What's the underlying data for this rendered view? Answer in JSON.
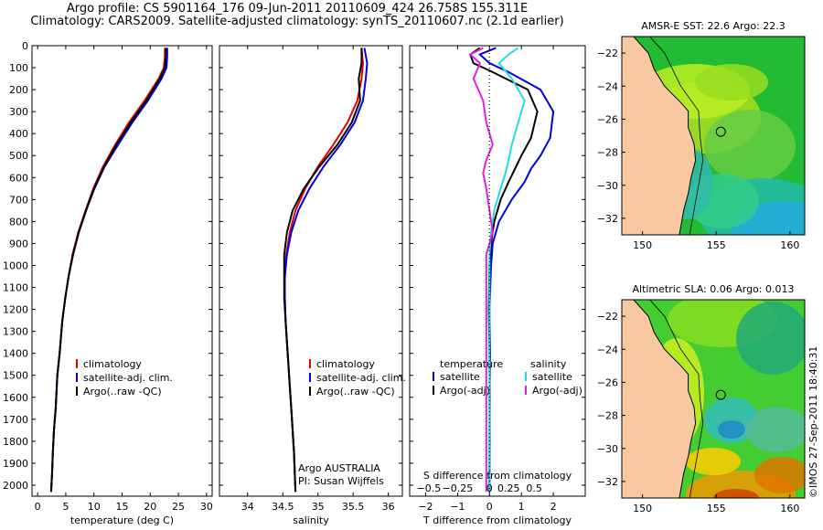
{
  "header": {
    "line1": "Argo profile: CS 5901164_176 09-Jun-2011 20110609_424 26.758S 155.311E",
    "line2": "Climatology: CARS2009. Satellite-adjusted climatology: synTS_20110607.nc (2.1d earlier)"
  },
  "colors": {
    "climatology": "#e00000",
    "satellite": "#0000e0",
    "argo": "#000000",
    "salinity_satellite": "#22dddd",
    "salinity_argo": "#dd22dd",
    "land": "#f8c8a0"
  },
  "watermark": "©IMOS 27-Sep-2011 18:40:31",
  "chart_data": [
    {
      "id": "temperature",
      "type": "line",
      "xlabel": "temperature (deg C)",
      "xlim": [
        -1,
        31
      ],
      "ylim": [
        2050,
        0
      ],
      "yticks": [
        0,
        100,
        200,
        300,
        400,
        500,
        600,
        700,
        800,
        900,
        1000,
        1100,
        1200,
        1300,
        1400,
        1500,
        1600,
        1700,
        1800,
        1900,
        2000
      ],
      "xticks": [
        0,
        5,
        10,
        15,
        20,
        25,
        30
      ],
      "legend": [
        "climatology",
        "satellite-adj. clim.",
        "Argo(..raw -QC)"
      ],
      "series": [
        {
          "name": "climatology",
          "color_key": "climatology",
          "x": [
            22.6,
            22.6,
            22.4,
            21.5,
            19.0,
            16.2,
            13.8,
            11.6,
            9.9,
            8.5,
            7.2,
            6.2,
            5.5,
            4.9,
            4.4,
            3.9,
            3.5,
            3.2,
            2.9,
            2.7,
            2.55,
            2.4
          ],
          "y": [
            10,
            50,
            100,
            150,
            250,
            350,
            450,
            550,
            650,
            750,
            850,
            950,
            1050,
            1150,
            1250,
            1400,
            1500,
            1650,
            1750,
            1850,
            1950,
            2030
          ]
        },
        {
          "name": "satellite-adj. clim.",
          "color_key": "satellite",
          "x": [
            23.0,
            23.0,
            22.9,
            22.0,
            19.6,
            16.8,
            14.3,
            11.9,
            10.1,
            8.6,
            7.3,
            6.3,
            5.5,
            4.9,
            4.4,
            3.9,
            3.5,
            3.2,
            2.9,
            2.7,
            2.55,
            2.4
          ],
          "y": [
            10,
            50,
            100,
            150,
            250,
            350,
            450,
            550,
            650,
            750,
            850,
            950,
            1050,
            1150,
            1250,
            1400,
            1500,
            1650,
            1750,
            1850,
            1950,
            2030
          ]
        },
        {
          "name": "Argo(..raw -QC)",
          "color_key": "argo",
          "x": [
            22.8,
            22.8,
            22.6,
            21.7,
            19.3,
            16.5,
            14.0,
            11.8,
            10.0,
            8.6,
            7.3,
            6.3,
            5.5,
            4.9,
            4.4,
            3.9,
            3.5,
            3.2,
            2.9,
            2.7,
            2.55,
            2.4
          ],
          "y": [
            10,
            50,
            100,
            150,
            250,
            350,
            450,
            550,
            650,
            750,
            850,
            950,
            1050,
            1150,
            1250,
            1400,
            1500,
            1650,
            1750,
            1850,
            1950,
            2030
          ]
        }
      ]
    },
    {
      "id": "salinity",
      "type": "line",
      "xlabel": "salinity",
      "xlim": [
        33.6,
        36.2
      ],
      "ylim": [
        2050,
        0
      ],
      "xticks": [
        34,
        34.5,
        35,
        35.5,
        36
      ],
      "legend": [
        "climatology",
        "satellite-adj. clim.",
        "Argo(..raw -QC)"
      ],
      "annotation": [
        "Argo AUSTRALIA",
        "PI: Susan Wijffels"
      ],
      "series": [
        {
          "name": "climatology",
          "color_key": "climatology",
          "x": [
            35.62,
            35.64,
            35.62,
            35.56,
            35.42,
            35.22,
            35.0,
            34.82,
            34.68,
            34.6,
            34.55,
            34.53,
            34.53,
            34.54,
            34.56,
            34.58,
            34.6,
            34.62,
            34.64,
            34.66,
            34.68
          ],
          "y": [
            10,
            80,
            150,
            250,
            350,
            450,
            550,
            650,
            750,
            850,
            950,
            1050,
            1150,
            1250,
            1350,
            1450,
            1550,
            1650,
            1750,
            1850,
            2030
          ]
        },
        {
          "name": "satellite-adj. clim.",
          "color_key": "satellite",
          "x": [
            35.66,
            35.7,
            35.68,
            35.64,
            35.52,
            35.32,
            35.08,
            34.88,
            34.72,
            34.62,
            34.56,
            34.53,
            34.53,
            34.54,
            34.56,
            34.58,
            34.6,
            34.62,
            34.64,
            34.66,
            34.68
          ],
          "y": [
            10,
            80,
            150,
            250,
            350,
            450,
            550,
            650,
            750,
            850,
            950,
            1050,
            1150,
            1250,
            1350,
            1450,
            1550,
            1650,
            1750,
            1850,
            2030
          ]
        },
        {
          "name": "Argo(..raw -QC)",
          "color_key": "argo",
          "x": [
            35.62,
            35.62,
            35.58,
            35.6,
            35.48,
            35.28,
            35.02,
            34.8,
            34.64,
            34.56,
            34.52,
            34.52,
            34.52,
            34.54,
            34.56,
            34.58,
            34.6,
            34.62,
            34.64,
            34.66,
            34.68
          ],
          "y": [
            10,
            80,
            150,
            250,
            350,
            450,
            550,
            650,
            750,
            850,
            950,
            1050,
            1150,
            1250,
            1350,
            1450,
            1550,
            1650,
            1750,
            1850,
            2030
          ]
        }
      ]
    },
    {
      "id": "difference",
      "type": "line",
      "xlabel": "T difference from climatology",
      "xlabel_top": "S difference from climatology",
      "xlim": [
        -2.5,
        3
      ],
      "ylim": [
        2050,
        0
      ],
      "xticks": [
        -2,
        -1,
        0,
        1,
        2
      ],
      "s_ticks": [
        "-0.5",
        "-0.25",
        "0",
        "0.25",
        "0.5"
      ],
      "s_tick_positions": [
        -1.9,
        -1.0,
        0.0,
        0.6,
        1.4
      ],
      "legend_temperature": {
        "title": "temperature",
        "items": [
          "satellite",
          "Argo(-adj)"
        ]
      },
      "legend_salinity": {
        "title": "salinity",
        "items": [
          "satellite",
          "Argo(-adj)"
        ]
      },
      "series": [
        {
          "name": "T satellite",
          "color_key": "satellite",
          "x": [
            0.2,
            -0.3,
            0.0,
            0.6,
            1.6,
            2.0,
            1.9,
            1.6,
            1.3,
            1.1,
            0.7,
            0.3,
            0.1,
            0.05,
            0.0,
            0.02,
            0.0,
            0.01,
            0.0
          ],
          "y": [
            10,
            40,
            80,
            120,
            200,
            300,
            420,
            500,
            560,
            620,
            700,
            800,
            900,
            1000,
            1200,
            1400,
            1600,
            1800,
            2030
          ]
        },
        {
          "name": "T Argo(-adj)",
          "color_key": "argo",
          "x": [
            -0.3,
            -0.6,
            -0.5,
            0.1,
            1.2,
            1.5,
            1.3,
            1.0,
            0.8,
            0.6,
            0.35,
            0.15,
            0.05,
            0.0,
            -0.02,
            0.0,
            0.01,
            0.0,
            0.0
          ],
          "y": [
            10,
            40,
            80,
            120,
            200,
            300,
            420,
            500,
            560,
            620,
            700,
            800,
            900,
            1000,
            1200,
            1400,
            1600,
            1800,
            2030
          ]
        },
        {
          "name": "S satellite",
          "color_key": "salinity_satellite",
          "x": [
            0.9,
            0.6,
            0.3,
            0.7,
            1.1,
            0.9,
            0.7,
            0.6,
            0.5,
            0.35,
            0.15,
            0.05,
            0.0,
            0.0,
            0.0,
            0.0,
            0.0,
            0.0
          ],
          "y": [
            10,
            40,
            80,
            150,
            250,
            350,
            450,
            520,
            580,
            650,
            750,
            850,
            950,
            1100,
            1300,
            1500,
            1700,
            2030
          ]
        },
        {
          "name": "S Argo(-adj)",
          "color_key": "salinity_argo",
          "x": [
            -0.2,
            -0.6,
            -0.3,
            -0.5,
            -0.2,
            -0.1,
            0.1,
            -0.1,
            -0.2,
            -0.1,
            0.0,
            0.1,
            -0.1,
            -0.1,
            -0.1,
            -0.1,
            -0.1,
            -0.1
          ],
          "y": [
            10,
            40,
            80,
            150,
            250,
            350,
            450,
            520,
            580,
            650,
            750,
            850,
            950,
            1100,
            1300,
            1500,
            1700,
            2030
          ]
        }
      ]
    },
    {
      "id": "sst-map",
      "type": "heatmap",
      "title": "AMSR-E SST: 22.6 Argo: 22.3",
      "xticks": [
        150,
        155,
        160
      ],
      "yticks": [
        -22,
        -24,
        -26,
        -28,
        -30,
        -32
      ],
      "lon_range": [
        148.6,
        161
      ],
      "lat_range": [
        -33,
        -21
      ],
      "marker": {
        "lon": 155.311,
        "lat": -26.758
      }
    },
    {
      "id": "sla-map",
      "type": "heatmap",
      "title": "Altimetric SLA: 0.06 Argo: 0.013",
      "xticks": [
        150,
        155,
        160
      ],
      "yticks": [
        -22,
        -24,
        -26,
        -28,
        -30,
        -32
      ],
      "lon_range": [
        148.6,
        161
      ],
      "lat_range": [
        -33,
        -21
      ],
      "marker": {
        "lon": 155.311,
        "lat": -26.758
      }
    }
  ]
}
